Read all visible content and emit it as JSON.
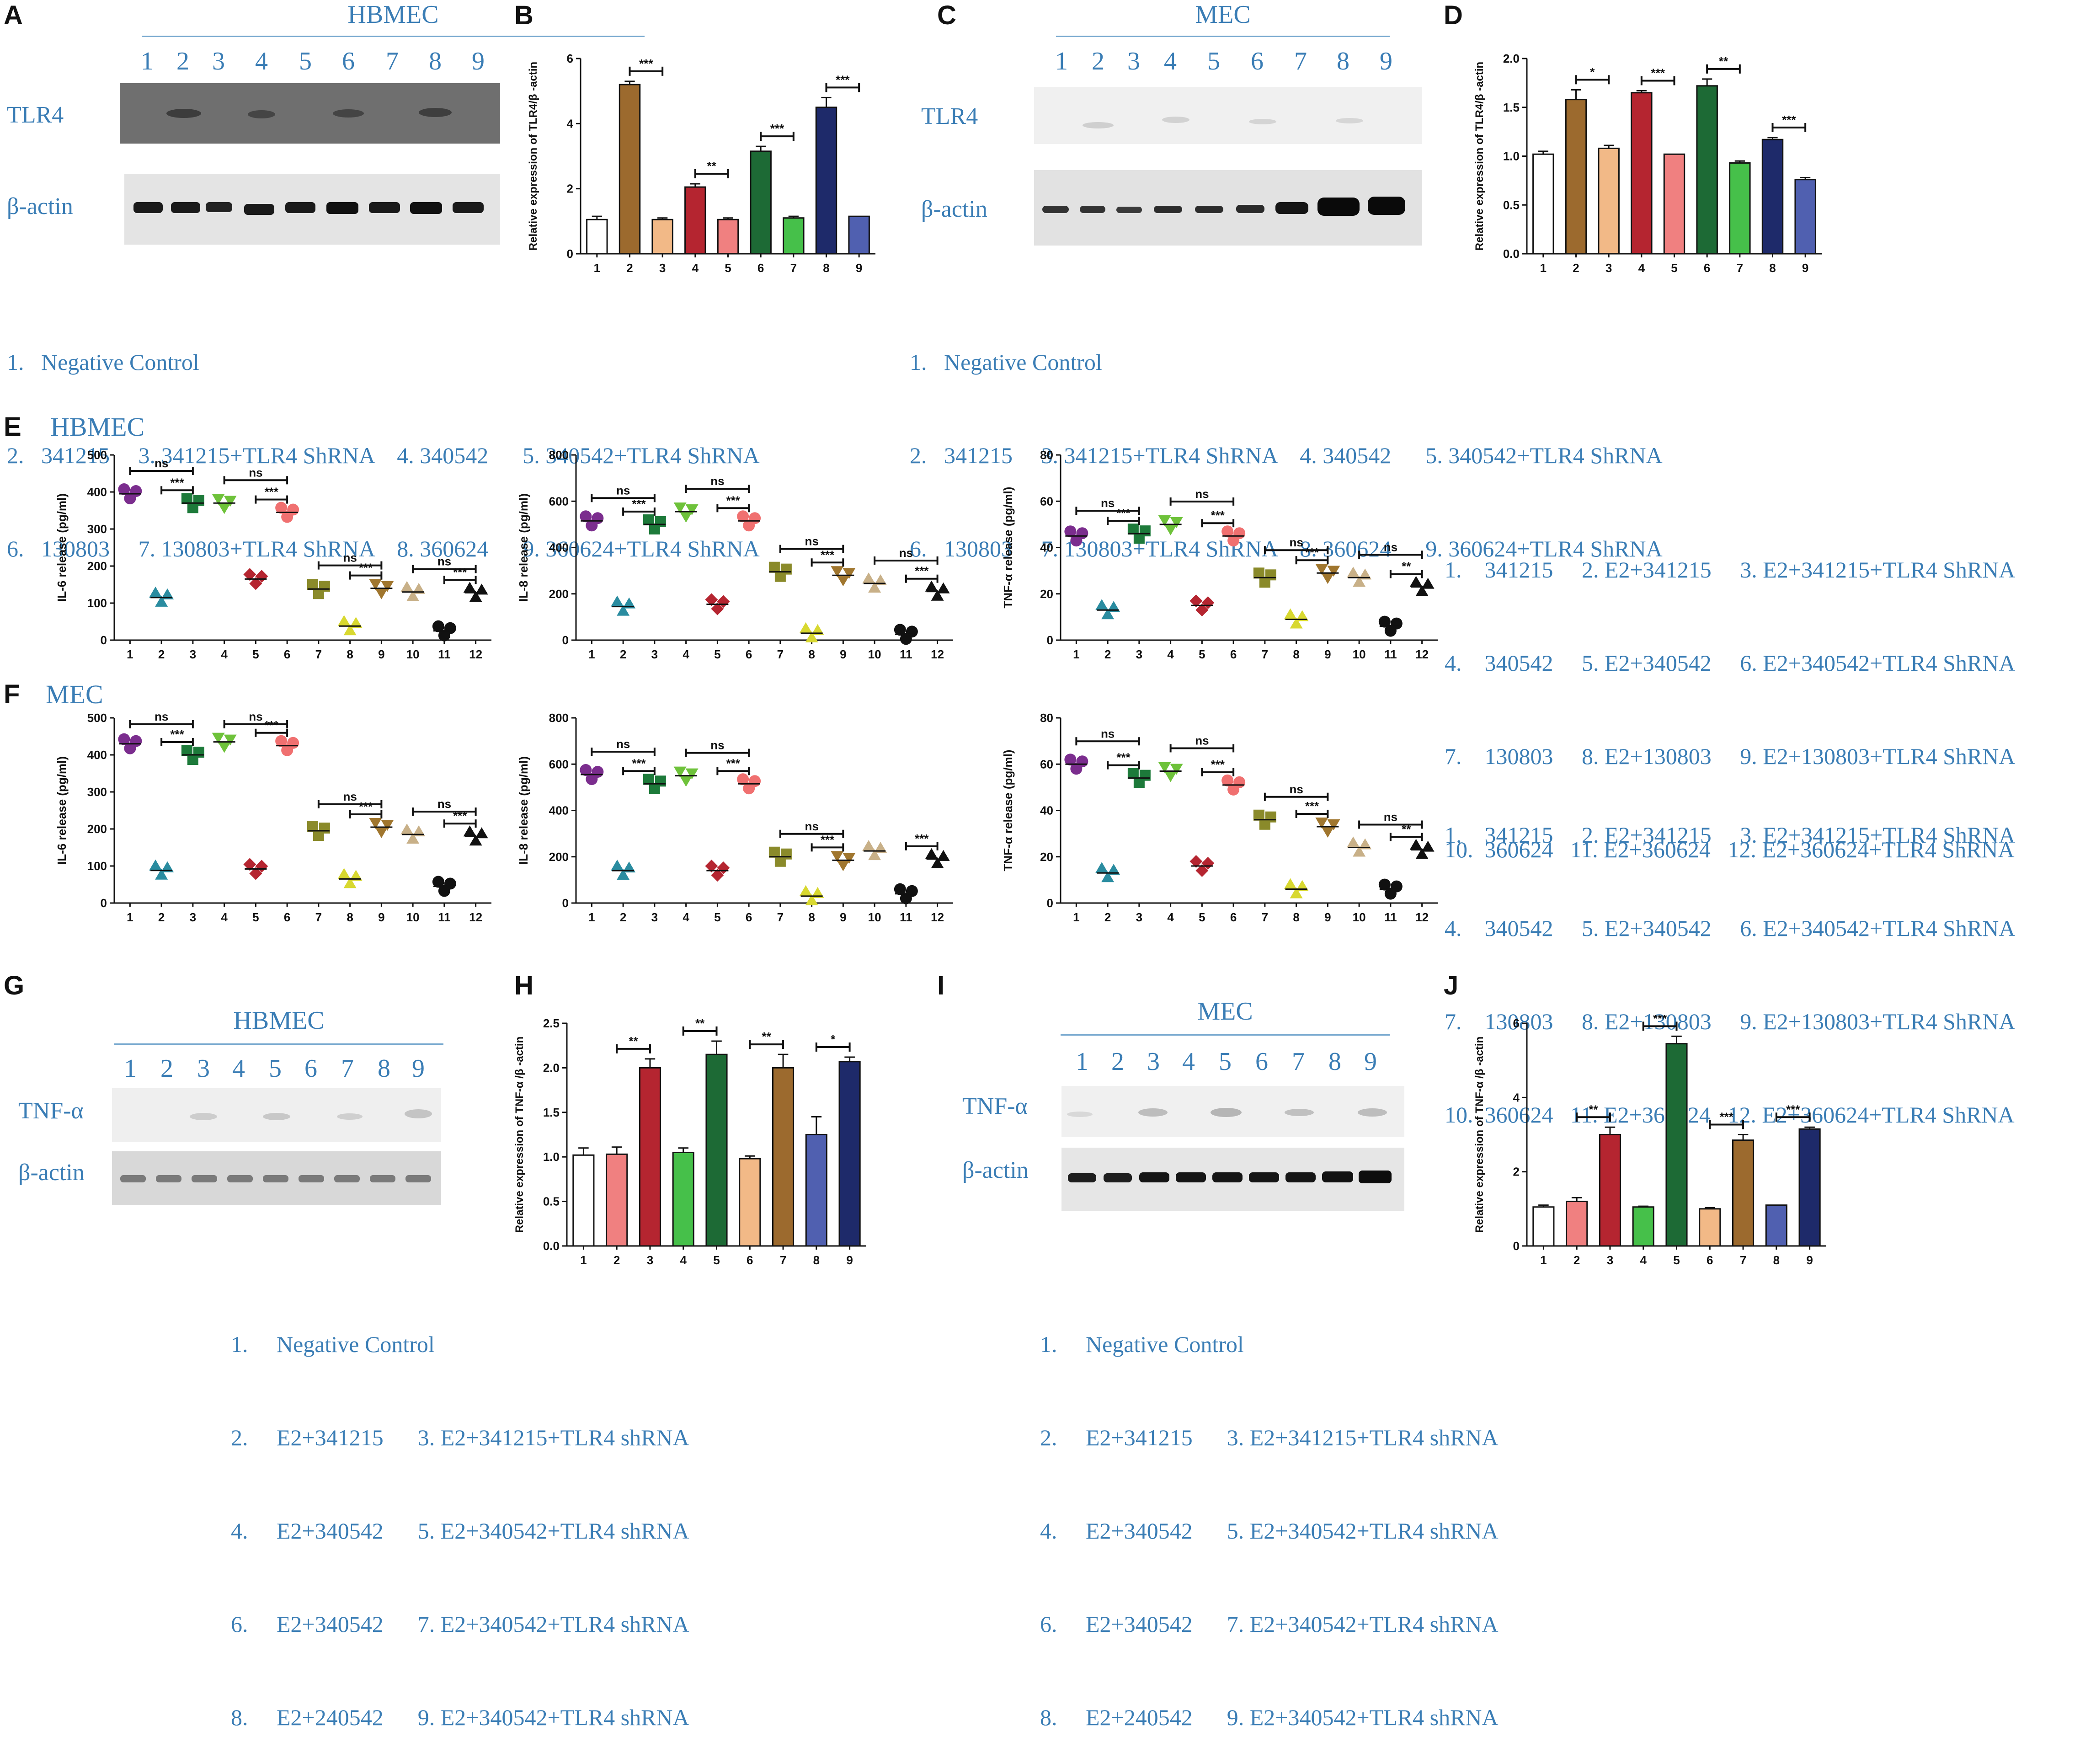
{
  "panel_labels": [
    "A",
    "B",
    "C",
    "D",
    "E",
    "F",
    "G",
    "H",
    "I",
    "J"
  ],
  "blots": {
    "A": {
      "title": "HBMEC",
      "lanes": [
        "1",
        "2",
        "3",
        "4",
        "5",
        "6",
        "7",
        "8",
        "9"
      ],
      "rows": [
        "TLR4",
        "β-actin"
      ]
    },
    "C": {
      "title": "MEC",
      "lanes": [
        "1",
        "2",
        "3",
        "4",
        "5",
        "6",
        "7",
        "8",
        "9"
      ],
      "rows": [
        "TLR4",
        "β-actin"
      ]
    },
    "G": {
      "title": "HBMEC",
      "lanes": [
        "1",
        "2",
        "3",
        "4",
        "5",
        "6",
        "7",
        "8",
        "9"
      ],
      "rows": [
        "TNF-α",
        "β-actin"
      ]
    },
    "I": {
      "title": "MEC",
      "lanes": [
        "1",
        "2",
        "3",
        "4",
        "5",
        "6",
        "7",
        "8",
        "9"
      ],
      "rows": [
        "TNF-α",
        "β-actin"
      ]
    }
  },
  "legends": {
    "top": [
      "1.   Negative Control",
      "2.   341215     3. 341215+TLR4 ShRNA    4. 340542      5. 340542+TLR4 ShRNA",
      "6.   130803     7. 130803+TLR4 ShRNA    8. 360624      9. 360624+TLR4 ShRNA"
    ],
    "ef": [
      "1.    341215     2. E2+341215     3. E2+341215+TLR4 ShRNA",
      "4.    340542     5. E2+340542     6. E2+340542+TLR4 ShRNA",
      "7.    130803     8. E2+130803     9. E2+130803+TLR4 ShRNA",
      "10.  360624   11. E2+360624   12. E2+360624+TLR4 ShRNA"
    ],
    "bottom": [
      "1.     Negative Control",
      "2.     E2+341215      3. E2+341215+TLR4 shRNA",
      "4.     E2+340542      5. E2+340542+TLR4 shRNA",
      "6.     E2+340542      7. E2+340542+TLR4 shRNA",
      "8.     E2+240542      9. E2+340542+TLR4 shRNA"
    ]
  },
  "cell_labels": {
    "E": "HBMEC",
    "F": "MEC"
  },
  "chart_data": [
    {
      "id": "B",
      "type": "bar",
      "ylabel": "Relative expression of TLR4/β -actin",
      "ylim": [
        0,
        6
      ],
      "yticks": [
        0,
        2,
        4,
        6
      ],
      "categories": [
        "1",
        "2",
        "3",
        "4",
        "5",
        "6",
        "7",
        "8",
        "9"
      ],
      "values": [
        1.05,
        5.2,
        1.05,
        2.05,
        1.05,
        3.15,
        1.1,
        4.5,
        1.15
      ],
      "errors": [
        0.1,
        0.1,
        0.05,
        0.1,
        0.05,
        0.15,
        0.05,
        0.3,
        0
      ],
      "colors": [
        "#ffffff",
        "#9c6a2e",
        "#f2b987",
        "#b52530",
        "#f08080",
        "#1d6a35",
        "#46c04a",
        "#1e2a6a",
        "#5060b0"
      ],
      "sig": [
        {
          "a": 2,
          "b": 3,
          "label": "***"
        },
        {
          "a": 4,
          "b": 5,
          "label": "**"
        },
        {
          "a": 6,
          "b": 7,
          "label": "***"
        },
        {
          "a": 8,
          "b": 9,
          "label": "***"
        }
      ]
    },
    {
      "id": "D",
      "type": "bar",
      "ylabel": "Relative expression of TLR4/β -actin",
      "ylim": [
        0,
        2
      ],
      "yticks": [
        0.0,
        0.5,
        1.0,
        1.5,
        2.0
      ],
      "categories": [
        "1",
        "2",
        "3",
        "4",
        "5",
        "6",
        "7",
        "8",
        "9"
      ],
      "values": [
        1.02,
        1.58,
        1.08,
        1.65,
        1.02,
        1.72,
        0.93,
        1.17,
        0.76
      ],
      "errors": [
        0.03,
        0.1,
        0.03,
        0.02,
        0,
        0.07,
        0.02,
        0.02,
        0.02
      ],
      "colors": [
        "#ffffff",
        "#9c6a2e",
        "#f2b987",
        "#b52530",
        "#f08080",
        "#1d6a35",
        "#46c04a",
        "#1e2a6a",
        "#5060b0"
      ],
      "sig": [
        {
          "a": 2,
          "b": 3,
          "label": "*"
        },
        {
          "a": 4,
          "b": 5,
          "label": "***"
        },
        {
          "a": 6,
          "b": 7,
          "label": "**"
        },
        {
          "a": 8,
          "b": 9,
          "label": "***"
        }
      ]
    },
    {
      "id": "E1",
      "type": "scatter",
      "ylabel": "IL-6 release (pg/ml)",
      "ylim": [
        0,
        500
      ],
      "yticks": [
        0,
        100,
        200,
        300,
        400,
        500
      ],
      "categories": [
        "1",
        "2",
        "3",
        "4",
        "5",
        "6",
        "7",
        "8",
        "9",
        "10",
        "11",
        "12"
      ],
      "values": [
        395,
        115,
        370,
        370,
        165,
        345,
        138,
        38,
        140,
        130,
        25,
        128
      ],
      "colors": [
        "#7b2d8e",
        "#2a8ca0",
        "#1d7a3a",
        "#6ec23a",
        "#b52530",
        "#f07070",
        "#8a8a2a",
        "#d8d830",
        "#a0762e",
        "#c8b088",
        "#111111",
        "#111111"
      ],
      "sig": [
        {
          "a": 1,
          "b": 3,
          "label": "ns"
        },
        {
          "a": 2,
          "b": 3,
          "label": "***"
        },
        {
          "a": 4,
          "b": 6,
          "label": "ns"
        },
        {
          "a": 5,
          "b": 6,
          "label": "***"
        },
        {
          "a": 7,
          "b": 9,
          "label": "ns"
        },
        {
          "a": 8,
          "b": 9,
          "label": "***"
        },
        {
          "a": 10,
          "b": 12,
          "label": "ns"
        },
        {
          "a": 11,
          "b": 12,
          "label": "***"
        }
      ]
    },
    {
      "id": "E2",
      "type": "scatter",
      "ylabel": "IL-8 release (pg/ml)",
      "ylim": [
        0,
        800
      ],
      "yticks": [
        0,
        200,
        400,
        600,
        800
      ],
      "categories": [
        "1",
        "2",
        "3",
        "4",
        "5",
        "6",
        "7",
        "8",
        "9",
        "10",
        "11",
        "12"
      ],
      "values": [
        515,
        145,
        500,
        555,
        155,
        515,
        295,
        30,
        280,
        245,
        25,
        210
      ],
      "colors": [
        "#7b2d8e",
        "#2a8ca0",
        "#1d7a3a",
        "#6ec23a",
        "#b52530",
        "#f07070",
        "#8a8a2a",
        "#d8d830",
        "#a0762e",
        "#c8b088",
        "#111111",
        "#111111"
      ],
      "sig": [
        {
          "a": 1,
          "b": 3,
          "label": "ns"
        },
        {
          "a": 2,
          "b": 3,
          "label": "***"
        },
        {
          "a": 4,
          "b": 6,
          "label": "ns"
        },
        {
          "a": 5,
          "b": 6,
          "label": "***"
        },
        {
          "a": 7,
          "b": 9,
          "label": "ns"
        },
        {
          "a": 8,
          "b": 9,
          "label": "***"
        },
        {
          "a": 10,
          "b": 12,
          "label": "ns"
        },
        {
          "a": 11,
          "b": 12,
          "label": "***"
        }
      ]
    },
    {
      "id": "E3",
      "type": "scatter",
      "ylabel": "TNF-α release (pg/ml)",
      "ylim": [
        0,
        80
      ],
      "yticks": [
        0,
        20,
        40,
        60,
        80
      ],
      "categories": [
        "1",
        "2",
        "3",
        "4",
        "5",
        "6",
        "7",
        "8",
        "9",
        "10",
        "11",
        "12"
      ],
      "values": [
        45,
        13,
        46,
        50,
        15,
        45,
        27,
        9,
        29,
        27,
        6,
        23
      ],
      "colors": [
        "#7b2d8e",
        "#2a8ca0",
        "#1d7a3a",
        "#6ec23a",
        "#b52530",
        "#f07070",
        "#8a8a2a",
        "#d8d830",
        "#a0762e",
        "#c8b088",
        "#111111",
        "#111111"
      ],
      "sig": [
        {
          "a": 1,
          "b": 3,
          "label": "ns"
        },
        {
          "a": 2,
          "b": 3,
          "label": "***"
        },
        {
          "a": 4,
          "b": 6,
          "label": "ns"
        },
        {
          "a": 5,
          "b": 6,
          "label": "***"
        },
        {
          "a": 7,
          "b": 9,
          "label": "ns"
        },
        {
          "a": 8,
          "b": 9,
          "label": "***"
        },
        {
          "a": 10,
          "b": 12,
          "label": "ns"
        },
        {
          "a": 11,
          "b": 12,
          "label": "**"
        }
      ]
    },
    {
      "id": "F1",
      "type": "scatter",
      "ylabel": "IL-6 release (pg/ml)",
      "ylim": [
        0,
        500
      ],
      "yticks": [
        0,
        100,
        200,
        300,
        400,
        500
      ],
      "categories": [
        "1",
        "2",
        "3",
        "4",
        "5",
        "6",
        "7",
        "8",
        "9",
        "10",
        "11",
        "12"
      ],
      "values": [
        430,
        88,
        400,
        435,
        92,
        425,
        195,
        65,
        205,
        185,
        45,
        180
      ],
      "colors": [
        "#7b2d8e",
        "#2a8ca0",
        "#1d7a3a",
        "#6ec23a",
        "#b52530",
        "#f07070",
        "#8a8a2a",
        "#d8d830",
        "#a0762e",
        "#c8b088",
        "#111111",
        "#111111"
      ],
      "sig": [
        {
          "a": 1,
          "b": 3,
          "label": "ns"
        },
        {
          "a": 2,
          "b": 3,
          "label": "***"
        },
        {
          "a": 4,
          "b": 6,
          "label": "ns"
        },
        {
          "a": 5,
          "b": 6,
          "label": "***"
        },
        {
          "a": 7,
          "b": 9,
          "label": "ns"
        },
        {
          "a": 8,
          "b": 9,
          "label": "***"
        },
        {
          "a": 10,
          "b": 12,
          "label": "ns"
        },
        {
          "a": 11,
          "b": 12,
          "label": "***"
        }
      ]
    },
    {
      "id": "F2",
      "type": "scatter",
      "ylabel": "IL-8 release (pg/ml)",
      "ylim": [
        0,
        800
      ],
      "yticks": [
        0,
        200,
        400,
        600,
        800
      ],
      "categories": [
        "1",
        "2",
        "3",
        "4",
        "5",
        "6",
        "7",
        "8",
        "9",
        "10",
        "11",
        "12"
      ],
      "values": [
        555,
        140,
        515,
        550,
        140,
        515,
        200,
        30,
        185,
        225,
        40,
        190
      ],
      "colors": [
        "#7b2d8e",
        "#2a8ca0",
        "#1d7a3a",
        "#6ec23a",
        "#b52530",
        "#f07070",
        "#8a8a2a",
        "#d8d830",
        "#a0762e",
        "#c8b088",
        "#111111",
        "#111111"
      ],
      "sig": [
        {
          "a": 1,
          "b": 3,
          "label": "ns"
        },
        {
          "a": 2,
          "b": 3,
          "label": "***"
        },
        {
          "a": 4,
          "b": 6,
          "label": "ns"
        },
        {
          "a": 5,
          "b": 6,
          "label": "***"
        },
        {
          "a": 7,
          "b": 9,
          "label": "ns"
        },
        {
          "a": 8,
          "b": 9,
          "label": "***"
        },
        {
          "a": 11,
          "b": 12,
          "label": "***"
        }
      ]
    },
    {
      "id": "F3",
      "type": "scatter",
      "ylabel": "TNF-α  release (pg/ml)",
      "ylim": [
        0,
        80
      ],
      "yticks": [
        0,
        20,
        40,
        60,
        80
      ],
      "categories": [
        "1",
        "2",
        "3",
        "4",
        "5",
        "6",
        "7",
        "8",
        "9",
        "10",
        "11",
        "12"
      ],
      "values": [
        60,
        13,
        54,
        57,
        16,
        51,
        36,
        6,
        33,
        24,
        6,
        23
      ],
      "colors": [
        "#7b2d8e",
        "#2a8ca0",
        "#1d7a3a",
        "#6ec23a",
        "#b52530",
        "#f07070",
        "#8a8a2a",
        "#d8d830",
        "#a0762e",
        "#c8b088",
        "#111111",
        "#111111"
      ],
      "sig": [
        {
          "a": 1,
          "b": 3,
          "label": "ns"
        },
        {
          "a": 2,
          "b": 3,
          "label": "***"
        },
        {
          "a": 4,
          "b": 6,
          "label": "ns"
        },
        {
          "a": 5,
          "b": 6,
          "label": "***"
        },
        {
          "a": 7,
          "b": 9,
          "label": "ns"
        },
        {
          "a": 8,
          "b": 9,
          "label": "***"
        },
        {
          "a": 10,
          "b": 12,
          "label": "ns"
        },
        {
          "a": 11,
          "b": 12,
          "label": "**"
        }
      ]
    },
    {
      "id": "H",
      "type": "bar",
      "ylabel": "Relative expression of TNF-α /β -actin",
      "ylim": [
        0,
        2.5
      ],
      "yticks": [
        0.0,
        0.5,
        1.0,
        1.5,
        2.0,
        2.5
      ],
      "categories": [
        "1",
        "2",
        "3",
        "4",
        "5",
        "6",
        "7",
        "8",
        "9"
      ],
      "values": [
        1.02,
        1.03,
        2.0,
        1.05,
        2.15,
        0.98,
        2.0,
        1.25,
        2.07
      ],
      "errors": [
        0.08,
        0.08,
        0.1,
        0.05,
        0.15,
        0.03,
        0.15,
        0.2,
        0.05
      ],
      "colors": [
        "#ffffff",
        "#f08080",
        "#b52530",
        "#46c04a",
        "#1d6a35",
        "#f2b987",
        "#9c6a2e",
        "#5060b0",
        "#1e2a6a"
      ],
      "sig": [
        {
          "a": 2,
          "b": 3,
          "label": "**"
        },
        {
          "a": 4,
          "b": 5,
          "label": "**"
        },
        {
          "a": 6,
          "b": 7,
          "label": "**"
        },
        {
          "a": 8,
          "b": 9,
          "label": "*"
        }
      ]
    },
    {
      "id": "J",
      "type": "bar",
      "ylabel": "Relative expression of TNF-α /β -actin",
      "ylim": [
        0,
        6
      ],
      "yticks": [
        0,
        2,
        4,
        6
      ],
      "categories": [
        "1",
        "2",
        "3",
        "4",
        "5",
        "6",
        "7",
        "8",
        "9"
      ],
      "values": [
        1.05,
        1.2,
        3.0,
        1.05,
        5.45,
        1.0,
        2.85,
        1.1,
        3.15
      ],
      "errors": [
        0.05,
        0.1,
        0.2,
        0.02,
        0.2,
        0.03,
        0.15,
        0,
        0.05
      ],
      "colors": [
        "#ffffff",
        "#f08080",
        "#b52530",
        "#46c04a",
        "#1d6a35",
        "#f2b987",
        "#9c6a2e",
        "#5060b0",
        "#1e2a6a"
      ],
      "sig": [
        {
          "a": 2,
          "b": 3,
          "label": "**"
        },
        {
          "a": 4,
          "b": 5,
          "label": "***"
        },
        {
          "a": 6,
          "b": 7,
          "label": "***"
        },
        {
          "a": 8,
          "b": 9,
          "label": "***"
        }
      ]
    }
  ]
}
